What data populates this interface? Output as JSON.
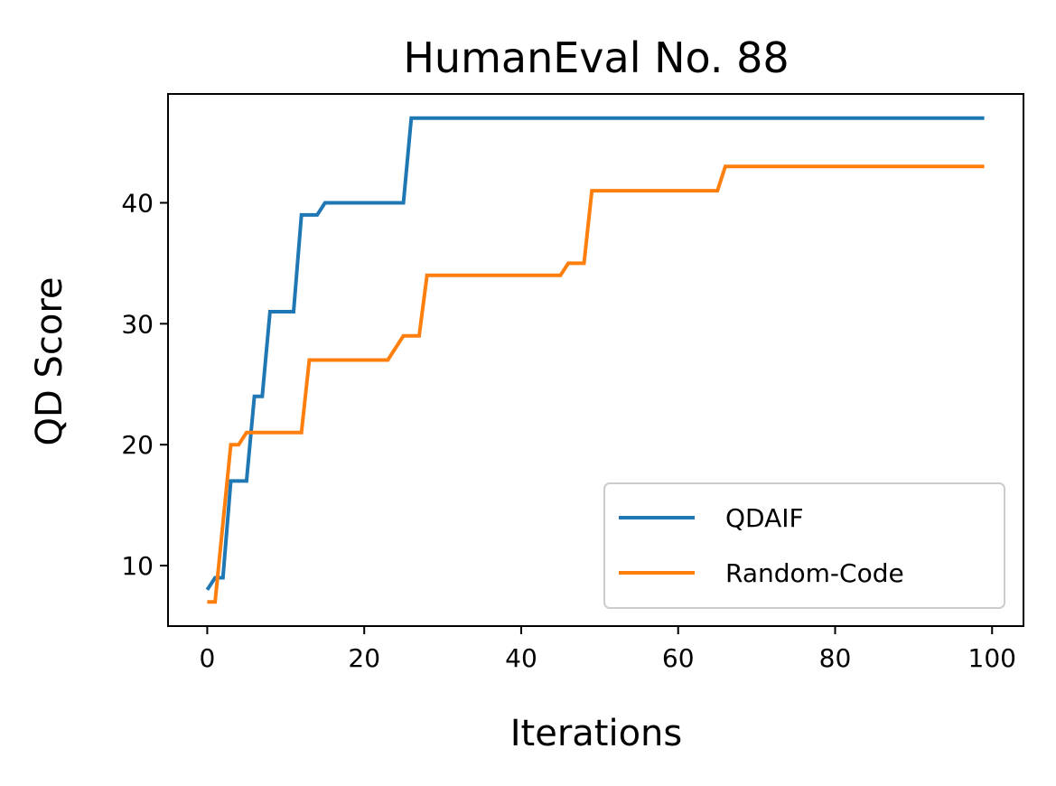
{
  "chart_data": {
    "type": "line",
    "title": "HumanEval No. 88",
    "xlabel": "Iterations",
    "ylabel": "QD Score",
    "xlim": [
      -5,
      104
    ],
    "ylim": [
      5,
      49
    ],
    "xticks": [
      0,
      20,
      40,
      60,
      80,
      100
    ],
    "yticks": [
      10,
      20,
      30,
      40
    ],
    "grid": false,
    "legend_position": "lower-right",
    "series": [
      {
        "name": "QDAIF",
        "color": "#1f77b4",
        "x": [
          0,
          1,
          2,
          3,
          5,
          6,
          7,
          8,
          11,
          12,
          14,
          15,
          25,
          26,
          99
        ],
        "y": [
          8,
          9,
          9,
          17,
          17,
          24,
          24,
          31,
          31,
          39,
          39,
          40,
          40,
          47,
          47
        ]
      },
      {
        "name": "Random-Code",
        "color": "#ff7f0e",
        "x": [
          0,
          1,
          3,
          4,
          5,
          12,
          13,
          23,
          25,
          27,
          28,
          45,
          46,
          47,
          48,
          49,
          65,
          66,
          99
        ],
        "y": [
          7,
          7,
          20,
          20,
          21,
          21,
          27,
          27,
          29,
          29,
          34,
          34,
          35,
          35,
          35,
          41,
          41,
          43,
          43
        ]
      }
    ]
  }
}
